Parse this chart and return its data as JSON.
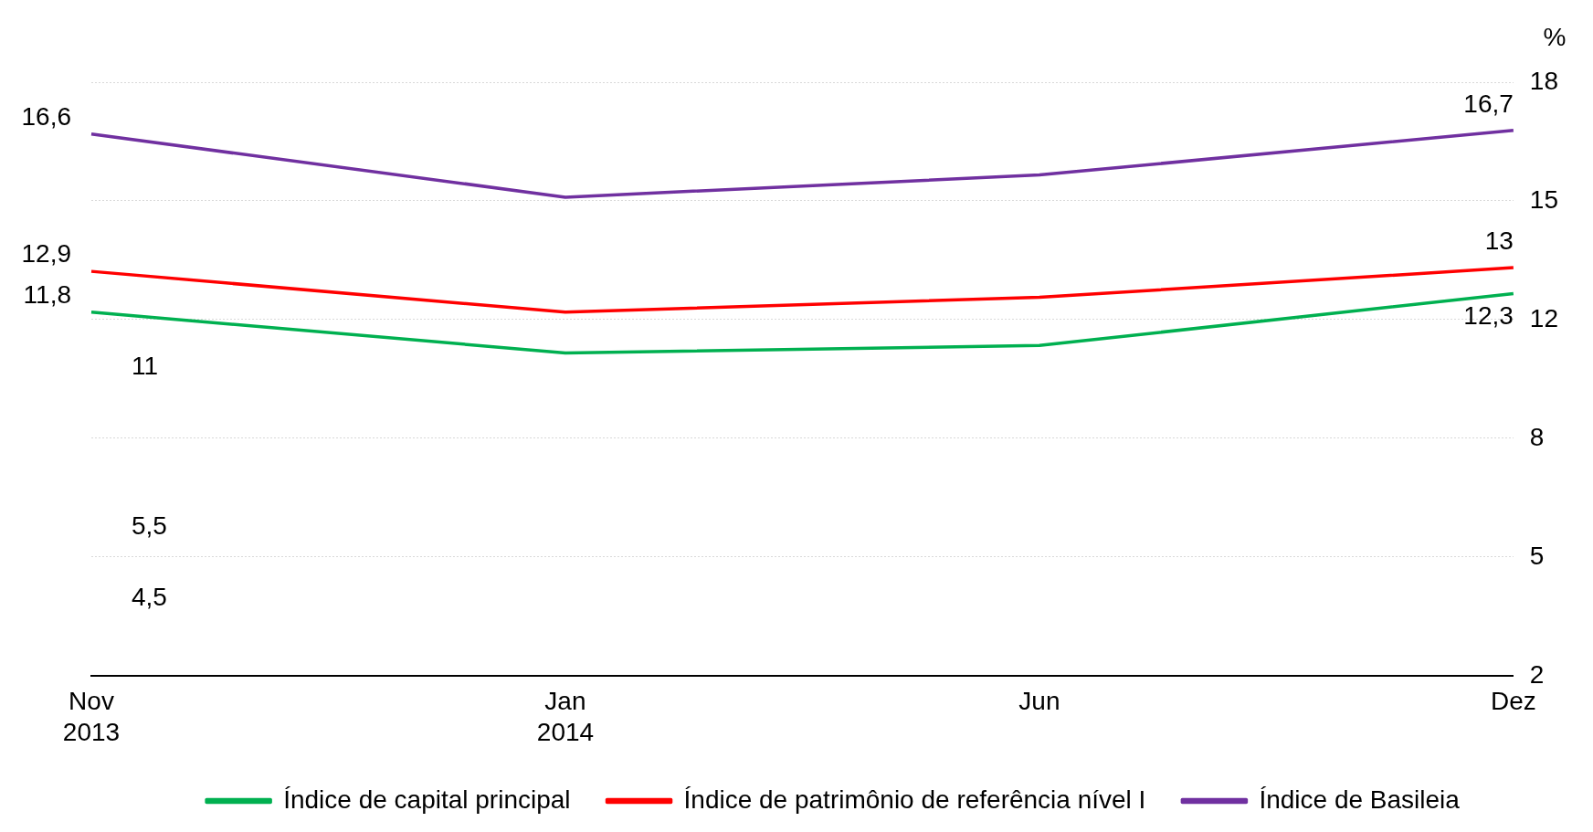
{
  "chart_data": {
    "type": "line",
    "ylabel": "%",
    "categories": [
      "Nov\n2013",
      "Jan\n2014",
      "Jun",
      "Dez"
    ],
    "series": [
      {
        "name": "Índice de capital principal",
        "color": "#00b050",
        "values": [
          11.8,
          10.7,
          10.9,
          12.3
        ],
        "value_labels": [
          "11,8",
          null,
          null,
          "12,3"
        ]
      },
      {
        "name": "Índice de patrimônio de referência nível I",
        "color": "#ff0000",
        "values": [
          12.9,
          11.8,
          12.2,
          13
        ],
        "value_labels": [
          "12,9",
          null,
          null,
          "13"
        ]
      },
      {
        "name": "Índice de Basileia",
        "color": "#7030a0",
        "values": [
          16.6,
          14.9,
          15.5,
          16.7
        ],
        "value_labels": [
          "16,6",
          null,
          null,
          "16,7"
        ]
      }
    ],
    "ylim": [
      2,
      18
    ],
    "yticks": [
      2,
      {
        "value": 5.2,
        "label": "5"
      },
      {
        "value": 8.4,
        "label": "8"
      },
      {
        "value": 11.6,
        "label": "12"
      },
      {
        "value": 14.8,
        "label": "15"
      },
      18
    ],
    "grid": "y",
    "legend": "bottom",
    "marker": "none",
    "line_style": "solid",
    "annotations": [
      "11",
      "5,5",
      "4,5"
    ]
  }
}
